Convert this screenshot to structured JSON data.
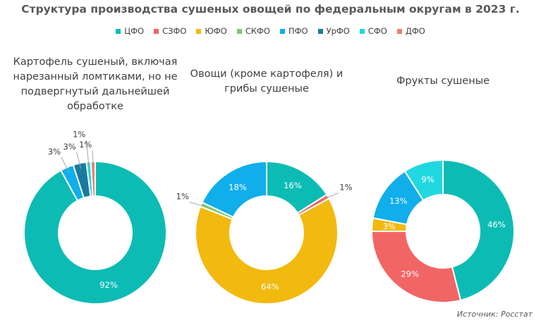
{
  "title": "Структура производства сушеных овощей по федеральным округам в 2023 г.",
  "source": "Источник: Росстат",
  "legend": [
    {
      "name": "ЦФО",
      "color": "#0cbcb4"
    },
    {
      "name": "СЗФО",
      "color": "#f26565"
    },
    {
      "name": "ЮФО",
      "color": "#f2b90f"
    },
    {
      "name": "СКФО",
      "color": "#7cc96d"
    },
    {
      "name": "ПФО",
      "color": "#10aeea"
    },
    {
      "name": "УрФО",
      "color": "#1a7a9c"
    },
    {
      "name": "СФО",
      "color": "#22d8e0"
    },
    {
      "name": "ДФО",
      "color": "#e9836b"
    }
  ],
  "chart_data": [
    {
      "type": "pie",
      "title": "Картофель сушеный, включая нарезанный ломтиками, но не подвергнутый дальнейшей обработке",
      "slices": [
        {
          "name": "ЦФО",
          "value": 92,
          "label": "92%"
        },
        {
          "name": "ПФО",
          "value": 3,
          "label": "3%"
        },
        {
          "name": "УрФО",
          "value": 3,
          "label": "3%"
        },
        {
          "name": "СФО",
          "value": 1,
          "label": "1%"
        },
        {
          "name": "ДФО",
          "value": 1,
          "label": "1%"
        }
      ]
    },
    {
      "type": "pie",
      "title": "Овощи (кроме картофеля) и грибы сушеные",
      "slices": [
        {
          "name": "ЦФО",
          "value": 16,
          "label": "16%"
        },
        {
          "name": "СЗФО",
          "value": 1,
          "label": "1%"
        },
        {
          "name": "ЮФО",
          "value": 64,
          "label": "64%"
        },
        {
          "name": "СКФО",
          "value": 1,
          "label": "1%"
        },
        {
          "name": "ПФО",
          "value": 18,
          "label": "18%"
        }
      ]
    },
    {
      "type": "pie",
      "title": "Фрукты сушеные",
      "slices": [
        {
          "name": "ЦФО",
          "value": 46,
          "label": "46%"
        },
        {
          "name": "СЗФО",
          "value": 29,
          "label": "29%"
        },
        {
          "name": "ЮФО",
          "value": 3,
          "label": "3%"
        },
        {
          "name": "ПФО",
          "value": 13,
          "label": "13%"
        },
        {
          "name": "СФО",
          "value": 9,
          "label": "9%"
        }
      ]
    }
  ]
}
